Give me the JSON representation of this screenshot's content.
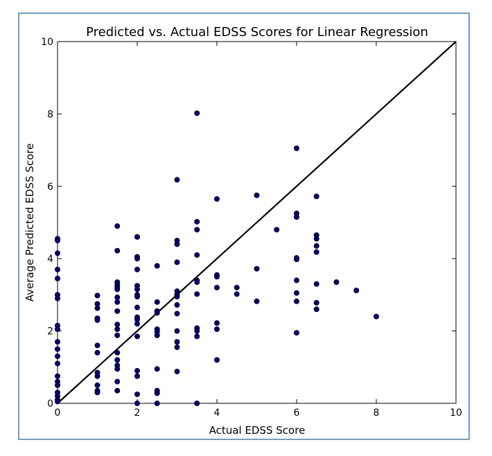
{
  "chart_data": {
    "type": "scatter",
    "title": "Predicted vs. Actual EDSS Scores for Linear Regression",
    "xlabel": "Actual EDSS Score",
    "ylabel": "Average Predicted EDSS Score",
    "xlim": [
      0,
      10
    ],
    "ylim": [
      0,
      10
    ],
    "xticks": [
      "0",
      "2",
      "4",
      "6",
      "8",
      "10"
    ],
    "yticks": [
      "0",
      "2",
      "4",
      "6",
      "8",
      "10"
    ],
    "grid": false,
    "point_color": "#000080",
    "reference_line": {
      "name": "y = x",
      "points": [
        [
          0,
          0
        ],
        [
          10,
          10
        ]
      ],
      "color": "#000000"
    },
    "points": [
      [
        0,
        4.55
      ],
      [
        0,
        4.5
      ],
      [
        0,
        4.15
      ],
      [
        0,
        3.7
      ],
      [
        0,
        3.45
      ],
      [
        0,
        3.0
      ],
      [
        0,
        2.9
      ],
      [
        0,
        2.15
      ],
      [
        0,
        2.05
      ],
      [
        0,
        1.7
      ],
      [
        0,
        1.5
      ],
      [
        0,
        1.3
      ],
      [
        0,
        1.1
      ],
      [
        0,
        0.75
      ],
      [
        0,
        0.6
      ],
      [
        0,
        0.5
      ],
      [
        0,
        0.3
      ],
      [
        0,
        0.2
      ],
      [
        0,
        0.1
      ],
      [
        0,
        0.05
      ],
      [
        1,
        2.98
      ],
      [
        1,
        2.75
      ],
      [
        1,
        2.63
      ],
      [
        1,
        2.35
      ],
      [
        1,
        2.3
      ],
      [
        1,
        1.6
      ],
      [
        1,
        1.4
      ],
      [
        1,
        0.85
      ],
      [
        1,
        0.75
      ],
      [
        1,
        0.5
      ],
      [
        1,
        0.35
      ],
      [
        1,
        0.3
      ],
      [
        1.5,
        4.9
      ],
      [
        1.5,
        4.22
      ],
      [
        1.5,
        3.35
      ],
      [
        1.5,
        3.28
      ],
      [
        1.5,
        3.22
      ],
      [
        1.5,
        3.15
      ],
      [
        1.5,
        2.93
      ],
      [
        1.5,
        2.8
      ],
      [
        1.5,
        2.55
      ],
      [
        1.5,
        2.18
      ],
      [
        1.5,
        2.05
      ],
      [
        1.5,
        1.88
      ],
      [
        1.5,
        1.4
      ],
      [
        1.5,
        1.2
      ],
      [
        1.5,
        1.05
      ],
      [
        1.5,
        0.95
      ],
      [
        1.5,
        0.6
      ],
      [
        1.5,
        0.35
      ],
      [
        2,
        4.6
      ],
      [
        2,
        4.05
      ],
      [
        2,
        4.0
      ],
      [
        2,
        3.7
      ],
      [
        2,
        3.25
      ],
      [
        2,
        3.15
      ],
      [
        2,
        3.0
      ],
      [
        2,
        2.95
      ],
      [
        2,
        2.65
      ],
      [
        2,
        2.38
      ],
      [
        2,
        2.32
      ],
      [
        2,
        2.2
      ],
      [
        2,
        1.85
      ],
      [
        2,
        0.9
      ],
      [
        2,
        0.75
      ],
      [
        2,
        0.25
      ],
      [
        2,
        0.0
      ],
      [
        2.5,
        3.8
      ],
      [
        2.5,
        2.8
      ],
      [
        2.5,
        2.55
      ],
      [
        2.5,
        2.5
      ],
      [
        2.5,
        2.05
      ],
      [
        2.5,
        1.98
      ],
      [
        2.5,
        1.88
      ],
      [
        2.5,
        0.95
      ],
      [
        2.5,
        0.35
      ],
      [
        2.5,
        0.28
      ],
      [
        2.5,
        0.0
      ],
      [
        3,
        6.18
      ],
      [
        3,
        4.5
      ],
      [
        3,
        4.4
      ],
      [
        3,
        3.9
      ],
      [
        3,
        3.1
      ],
      [
        3,
        3.0
      ],
      [
        3,
        2.95
      ],
      [
        3,
        2.72
      ],
      [
        3,
        2.48
      ],
      [
        3,
        2.0
      ],
      [
        3,
        1.7
      ],
      [
        3,
        1.55
      ],
      [
        3,
        0.88
      ],
      [
        3.5,
        8.02
      ],
      [
        3.5,
        5.02
      ],
      [
        3.5,
        4.8
      ],
      [
        3.5,
        4.1
      ],
      [
        3.5,
        3.4
      ],
      [
        3.5,
        3.35
      ],
      [
        3.5,
        3.02
      ],
      [
        3.5,
        2.08
      ],
      [
        3.5,
        2.0
      ],
      [
        3.5,
        1.85
      ],
      [
        3.5,
        0.0
      ],
      [
        4,
        5.65
      ],
      [
        4,
        3.55
      ],
      [
        4,
        3.5
      ],
      [
        4,
        3.2
      ],
      [
        4,
        2.22
      ],
      [
        4,
        2.05
      ],
      [
        4,
        1.2
      ],
      [
        4.5,
        3.2
      ],
      [
        4.5,
        3.02
      ],
      [
        5,
        5.75
      ],
      [
        5,
        3.72
      ],
      [
        5,
        2.82
      ],
      [
        5.5,
        4.8
      ],
      [
        6,
        7.05
      ],
      [
        6,
        5.25
      ],
      [
        6,
        5.15
      ],
      [
        6,
        4.02
      ],
      [
        6,
        3.98
      ],
      [
        6,
        3.4
      ],
      [
        6,
        3.05
      ],
      [
        6,
        2.82
      ],
      [
        6,
        1.95
      ],
      [
        6.5,
        5.72
      ],
      [
        6.5,
        4.65
      ],
      [
        6.5,
        4.55
      ],
      [
        6.5,
        4.35
      ],
      [
        6.5,
        4.18
      ],
      [
        6.5,
        3.3
      ],
      [
        6.5,
        2.78
      ],
      [
        6.5,
        2.6
      ],
      [
        7,
        3.35
      ],
      [
        7.5,
        3.12
      ],
      [
        8,
        2.4
      ]
    ]
  }
}
